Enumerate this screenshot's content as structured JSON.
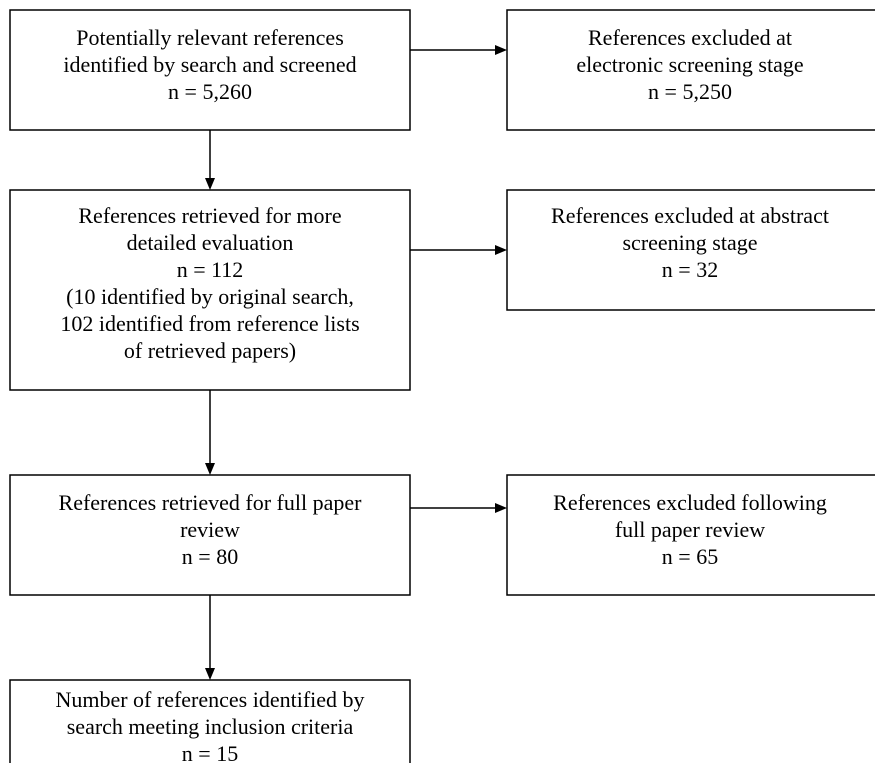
{
  "nodes": [
    {
      "lines": [
        "Potentially relevant references",
        "identified by search and screened",
        "n = 5,260"
      ]
    },
    {
      "lines": [
        "References excluded at",
        "electronic screening stage",
        "n = 5,250"
      ]
    },
    {
      "lines": [
        "References retrieved for more",
        "detailed evaluation",
        "n = 112",
        "(10 identified by original search,",
        "102 identified from reference lists",
        "of retrieved papers)"
      ]
    },
    {
      "lines": [
        "References excluded at abstract",
        "screening stage",
        "n = 32"
      ]
    },
    {
      "lines": [
        "References retrieved for full paper",
        "review",
        "n = 80"
      ]
    },
    {
      "lines": [
        "References excluded following",
        "full paper review",
        "n = 65"
      ]
    },
    {
      "lines": [
        "Number of references identified by",
        "search meeting inclusion criteria",
        "n = 15"
      ]
    }
  ]
}
